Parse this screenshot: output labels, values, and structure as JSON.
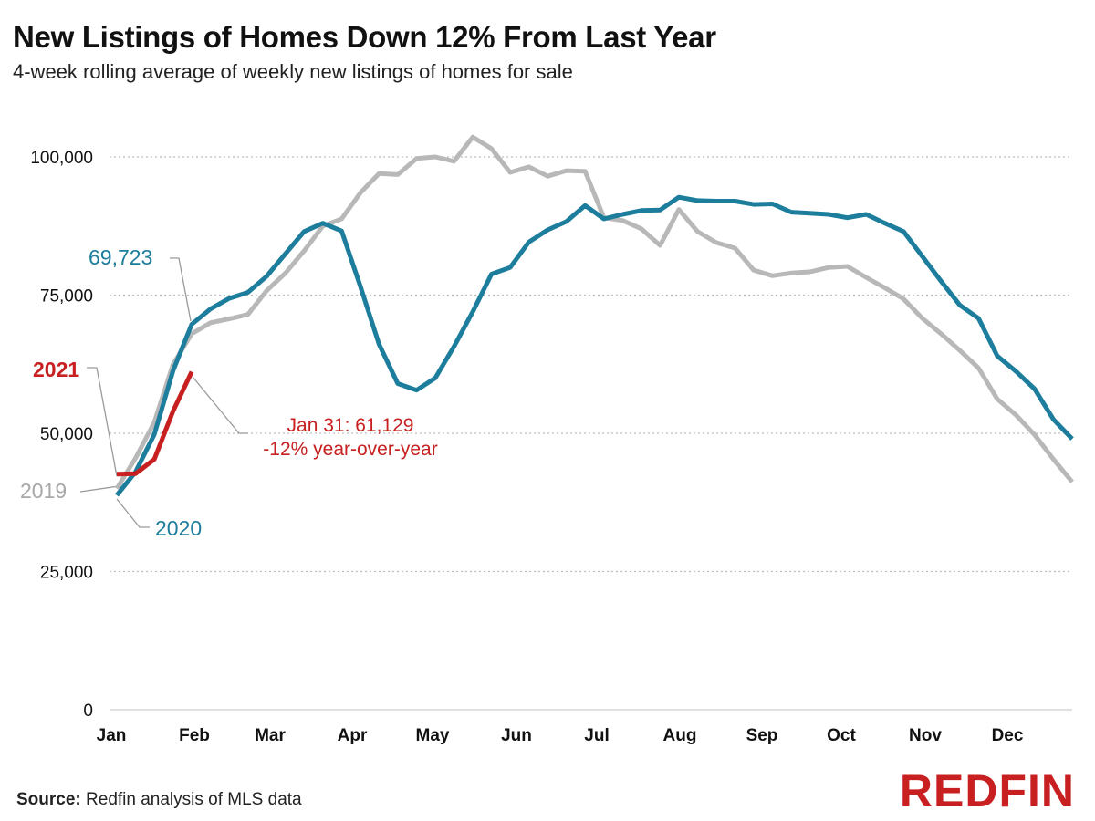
{
  "title": "New Listings of Homes Down 12% From Last Year",
  "subtitle": "4-week rolling average of weekly new listings of homes for sale",
  "source": {
    "label": "Source:",
    "text": "Redfin analysis of MLS data"
  },
  "logo": {
    "text": "REDFIN",
    "color": "#C82021"
  },
  "chart_data": {
    "type": "line",
    "y_ticks": [
      0,
      25000,
      50000,
      75000,
      100000
    ],
    "y_tick_labels": [
      "0",
      "25,000",
      "50,000",
      "75,000",
      "100,000"
    ],
    "ylim": [
      0,
      100000
    ],
    "x_ticks": [
      "Jan",
      "Feb",
      "Mar",
      "Apr",
      "May",
      "Jun",
      "Jul",
      "Aug",
      "Sep",
      "Oct",
      "Nov",
      "Dec"
    ],
    "grid": true,
    "series": [
      {
        "name": "2019",
        "color": "#B8B8B8",
        "values": [
          40000,
          45500,
          52000,
          62500,
          68000,
          70000,
          70700,
          71500,
          75800,
          79000,
          83000,
          87500,
          88800,
          93500,
          97000,
          96800,
          99700,
          100000,
          99200,
          103600,
          101500,
          97200,
          98200,
          96500,
          97500,
          97400,
          89000,
          88500,
          87000,
          84000,
          90500,
          86500,
          84500,
          83500,
          79500,
          78500,
          79000,
          79200,
          80000,
          80200,
          78200,
          76300,
          74300,
          70800,
          68000,
          65000,
          61800,
          56200,
          53300,
          49700,
          45300,
          41200
        ]
      },
      {
        "name": "2020",
        "color": "#1D7D9C",
        "values": [
          38800,
          43000,
          49800,
          61300,
          69723,
          72500,
          74400,
          75500,
          78400,
          82500,
          86500,
          88000,
          86600,
          76600,
          66100,
          59000,
          57800,
          60000,
          65700,
          72000,
          78800,
          80000,
          84600,
          86800,
          88300,
          91200,
          88800,
          89600,
          90300,
          90400,
          92700,
          92100,
          92000,
          92000,
          91400,
          91500,
          90000,
          89800,
          89600,
          89000,
          89600,
          88000,
          86500,
          82000,
          77500,
          73200,
          70800,
          64000,
          61200,
          58000,
          52500,
          49000
        ]
      },
      {
        "name": "2021",
        "color": "#C82021",
        "values": [
          42600,
          42700,
          45300,
          54000,
          61129
        ]
      }
    ],
    "annotations": [
      {
        "text": "69,723",
        "color": "#1D7D9C"
      },
      {
        "text": "2021",
        "color": "#C82021"
      },
      {
        "text": "Jan 31: 61,129",
        "color": "#C82021"
      },
      {
        "text": "-12% year-over-year",
        "color": "#C82021"
      },
      {
        "text": "2019",
        "color": "#A8A8A8"
      },
      {
        "text": "2020",
        "color": "#1D7D9C"
      }
    ]
  }
}
